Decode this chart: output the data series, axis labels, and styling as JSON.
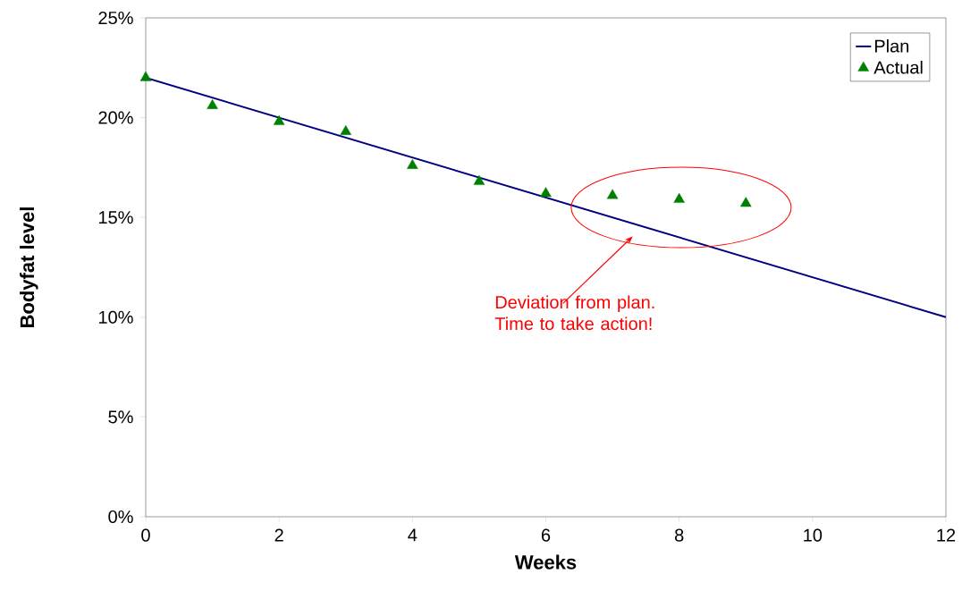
{
  "chart_data": {
    "type": "line",
    "xlabel": "Weeks",
    "ylabel": "Bodyfat level",
    "xlim": [
      0,
      12
    ],
    "ylim": [
      0,
      25
    ],
    "xticks": [
      0,
      2,
      4,
      6,
      8,
      10,
      12
    ],
    "yticks": [
      {
        "value": 0,
        "label": "0%"
      },
      {
        "value": 5,
        "label": "5%"
      },
      {
        "value": 10,
        "label": "10%"
      },
      {
        "value": 15,
        "label": "15%"
      },
      {
        "value": 20,
        "label": "20%"
      },
      {
        "value": 25,
        "label": "25%"
      }
    ],
    "series": [
      {
        "name": "Plan",
        "color": "#000080",
        "marker": "none",
        "line_style": "solid",
        "x": [
          0,
          12
        ],
        "values": [
          22,
          10
        ]
      },
      {
        "name": "Actual",
        "type": "scatter",
        "color": "#008000",
        "marker": "triangle",
        "x": [
          0,
          1,
          2,
          3,
          4,
          5,
          6,
          7,
          8,
          9
        ],
        "values": [
          22,
          20.6,
          19.8,
          19.3,
          17.6,
          16.8,
          16.2,
          16.1,
          15.9,
          15.7
        ]
      }
    ],
    "annotations": [
      "Deviation from plan. Time to take action!"
    ],
    "legend": "top right",
    "grid": false
  }
}
